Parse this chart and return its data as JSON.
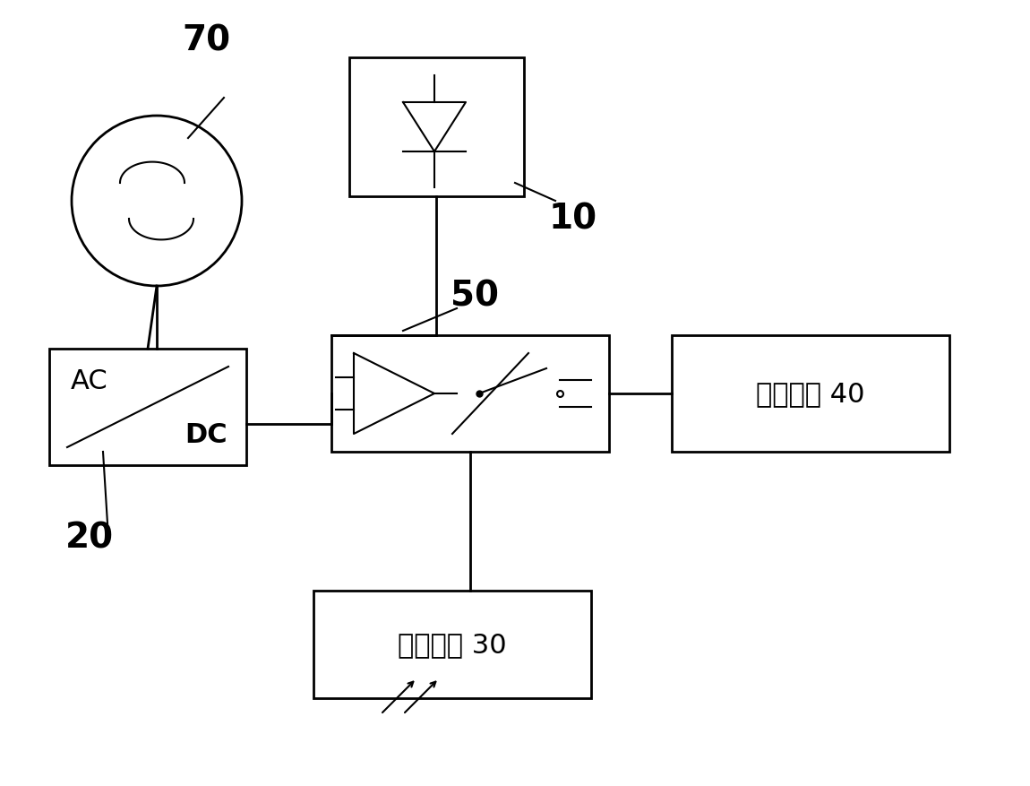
{
  "bg_color": "#ffffff",
  "line_color": "#000000",
  "lw": 2.0,
  "tlw": 1.5,
  "fig_width": 11.5,
  "fig_height": 8.78,
  "labels": {
    "label_70": "70",
    "label_10": "10",
    "label_20": "20",
    "label_50": "50",
    "label_40": "储能组件 40",
    "label_30": "空调机组 30",
    "label_AC": "AC",
    "label_DC": "DC"
  },
  "font_size_large": 28,
  "font_size_medium": 22,
  "font_size_label": 22
}
